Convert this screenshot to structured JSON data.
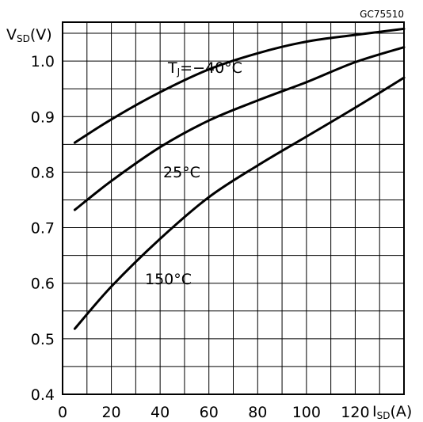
{
  "chart_data": {
    "type": "line",
    "figure_code": "GC75510",
    "ylabel": {
      "main": "V",
      "sub": "SD",
      "unit": "(V)"
    },
    "xlabel": {
      "main": "I",
      "sub": "SD",
      "unit": "(A)"
    },
    "xlim": [
      0,
      140
    ],
    "ylim": [
      0.4,
      1.07
    ],
    "grid": true,
    "x_ticks": [
      0,
      20,
      40,
      60,
      80,
      100,
      120
    ],
    "y_ticks": [
      0.4,
      0.5,
      0.6,
      0.7,
      0.8,
      0.9,
      1.0
    ],
    "x_tick_labels": [
      "0",
      "20",
      "40",
      "60",
      "80",
      "100",
      "120"
    ],
    "y_tick_labels": [
      "0.4",
      "0.5",
      "0.6",
      "0.7",
      "0.8",
      "0.9",
      "1.0"
    ],
    "series": [
      {
        "name": "TJ=-40°C",
        "label_main": "T",
        "label_sub": "J",
        "label_rest": "=−40°C",
        "x": [
          5,
          20,
          40,
          60,
          80,
          100,
          120,
          140
        ],
        "y": [
          0.853,
          0.895,
          0.944,
          0.985,
          1.014,
          1.035,
          1.047,
          1.058
        ]
      },
      {
        "name": "25°C",
        "label_main": "25°C",
        "x": [
          5,
          20,
          40,
          60,
          80,
          100,
          120,
          140
        ],
        "y": [
          0.732,
          0.784,
          0.845,
          0.893,
          0.929,
          0.962,
          0.998,
          1.025
        ]
      },
      {
        "name": "150°C",
        "label_main": "150°C",
        "x": [
          5,
          20,
          40,
          60,
          80,
          100,
          120,
          140
        ],
        "y": [
          0.518,
          0.594,
          0.68,
          0.755,
          0.812,
          0.864,
          0.916,
          0.97
        ]
      }
    ]
  }
}
